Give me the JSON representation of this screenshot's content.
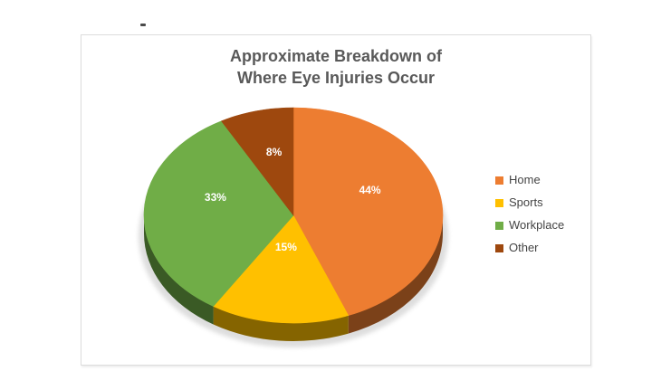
{
  "chart_data": {
    "type": "pie",
    "is_3d": true,
    "title": "Approximate Breakdown of Where Eye Injuries Occur",
    "title_lines": [
      "Approximate Breakdown of",
      "Where Eye Injuries Occur"
    ],
    "categories": [
      "Home",
      "Sports",
      "Workplace",
      "Other"
    ],
    "values": [
      44,
      15,
      33,
      8
    ],
    "data_labels": [
      "44%",
      "15%",
      "33%",
      "8%"
    ],
    "colors": [
      "#ED7D31",
      "#FFC000",
      "#70AD47",
      "#9E480E"
    ],
    "start_angle_deg": 0,
    "direction": "clockwise",
    "legend_position": "right",
    "legend": [
      "Home",
      "Sports",
      "Workplace",
      "Other"
    ],
    "styles": {
      "title_color": "#595959",
      "legend_text_color": "#444444",
      "data_label_color": "#FFFFFF",
      "chart_border_color": "#DCDCDC",
      "background": "#FFFFFF"
    }
  }
}
